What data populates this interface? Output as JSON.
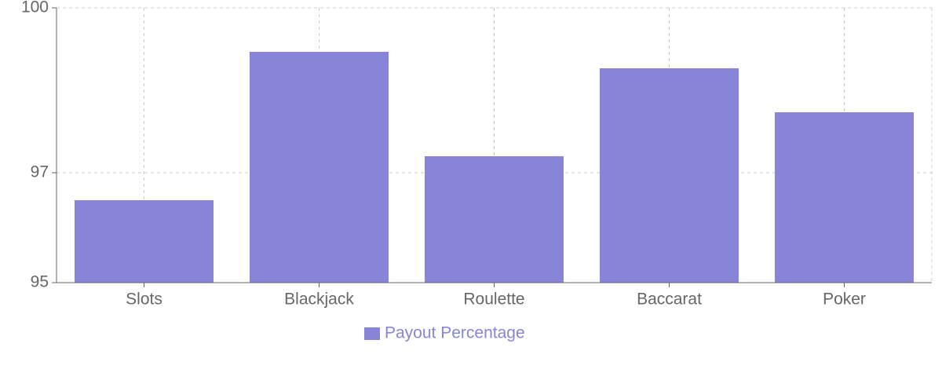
{
  "chart_data": {
    "type": "bar",
    "categories": [
      "Slots",
      "Blackjack",
      "Roulette",
      "Baccarat",
      "Poker"
    ],
    "series": [
      {
        "name": "Payout Percentage",
        "color": "#8884d8",
        "values": [
          96.5,
          99.2,
          97.3,
          98.9,
          98.1
        ]
      }
    ],
    "ylim": [
      95,
      100
    ],
    "yticks": [
      95,
      97,
      100
    ],
    "grid": true
  }
}
